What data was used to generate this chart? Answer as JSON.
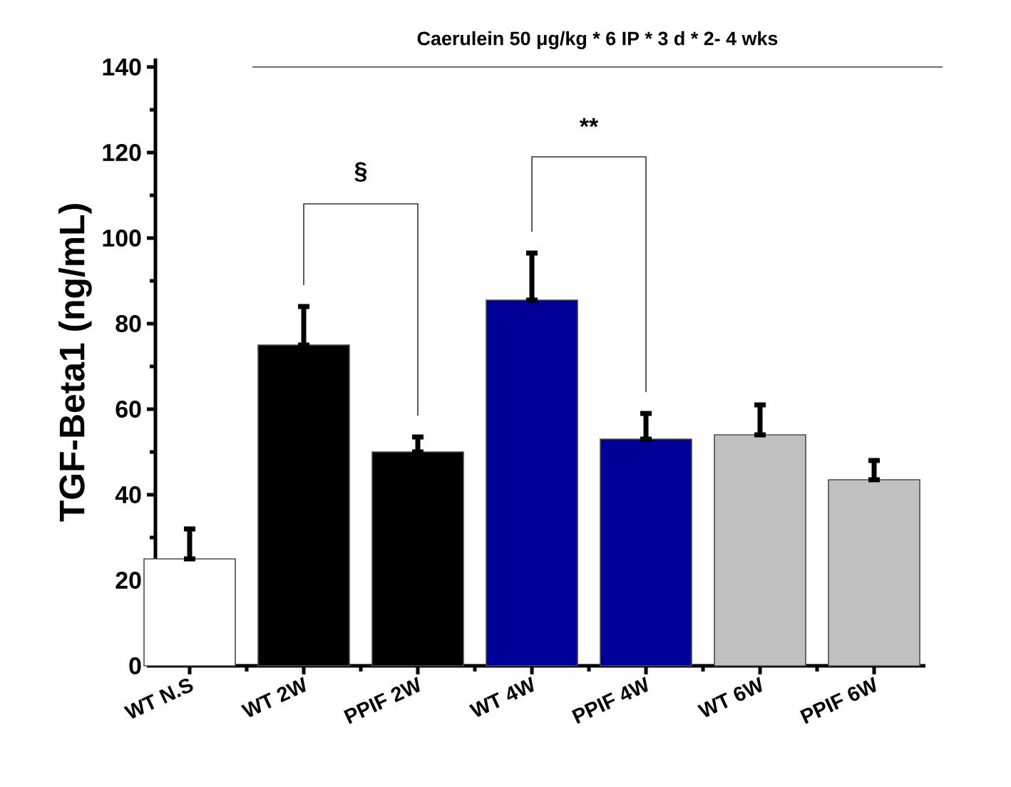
{
  "chart_data": {
    "type": "bar",
    "title": "Caerulein 50 μg/kg * 6 IP * 3 d * 2- 4 wks",
    "ylabel": "TGF-Beta1 (ng/mL)",
    "categories": [
      "WT N.S",
      "WT 2W",
      "PPIF 2W",
      "WT 4W",
      "PPIF 4W",
      "WT 6W",
      "PPIF 6W"
    ],
    "values": [
      25,
      75,
      50,
      85.5,
      53,
      54,
      43.5
    ],
    "colors": [
      "#ffffff",
      "#000000",
      "#000000",
      "#000099",
      "#000099",
      "#c0c0c0",
      "#c0c0c0"
    ],
    "errors": [
      [
        25,
        32
      ],
      [
        75,
        84
      ],
      [
        50,
        53.5
      ],
      [
        85.5,
        96.5
      ],
      [
        53,
        59
      ],
      [
        54,
        61
      ],
      [
        43.5,
        48
      ]
    ],
    "ylim": [
      0,
      142
    ],
    "yticks": [
      0,
      20,
      40,
      60,
      80,
      100,
      120,
      140
    ],
    "annotations": [
      "§",
      "**"
    ]
  }
}
